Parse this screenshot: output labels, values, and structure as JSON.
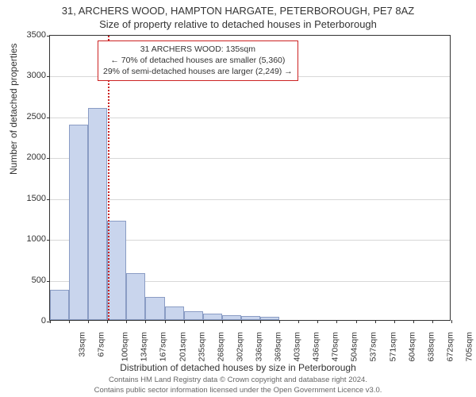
{
  "title": {
    "main": "31, ARCHERS WOOD, HAMPTON HARGATE, PETERBOROUGH, PE7 8AZ",
    "sub": "Size of property relative to detached houses in Peterborough"
  },
  "chart": {
    "type": "histogram",
    "ylabel": "Number of detached properties",
    "xlabel": "Distribution of detached houses by size in Peterborough",
    "ylim": [
      0,
      3500
    ],
    "yticks": [
      0,
      500,
      1000,
      1500,
      2000,
      2500,
      3000,
      3500
    ],
    "xtick_labels": [
      "33sqm",
      "67sqm",
      "100sqm",
      "134sqm",
      "167sqm",
      "201sqm",
      "235sqm",
      "268sqm",
      "302sqm",
      "336sqm",
      "369sqm",
      "403sqm",
      "436sqm",
      "470sqm",
      "504sqm",
      "537sqm",
      "571sqm",
      "604sqm",
      "638sqm",
      "672sqm",
      "705sqm"
    ],
    "values": [
      370,
      2390,
      2600,
      1220,
      570,
      280,
      170,
      110,
      80,
      60,
      45,
      35,
      0,
      0,
      0,
      0,
      0,
      0,
      0,
      0,
      0
    ],
    "bar_fill": "#c9d5ed",
    "bar_stroke": "#8a9cc4",
    "grid_color": "#d8d8d8",
    "border_color": "#333333",
    "background_color": "#ffffff",
    "label_fontsize": 12,
    "tick_fontsize": 11,
    "marker": {
      "bin_index": 3,
      "color": "#cc2222",
      "style": "dotted"
    },
    "info_box": {
      "line1": "31 ARCHERS WOOD: 135sqm",
      "line2": "← 70% of detached houses are smaller (5,360)",
      "line3": "29% of semi-detached houses are larger (2,249) →",
      "border_color": "#cc2222"
    }
  },
  "footer": {
    "line1": "Contains HM Land Registry data © Crown copyright and database right 2024.",
    "line2": "Contains public sector information licensed under the Open Government Licence v3.0."
  }
}
